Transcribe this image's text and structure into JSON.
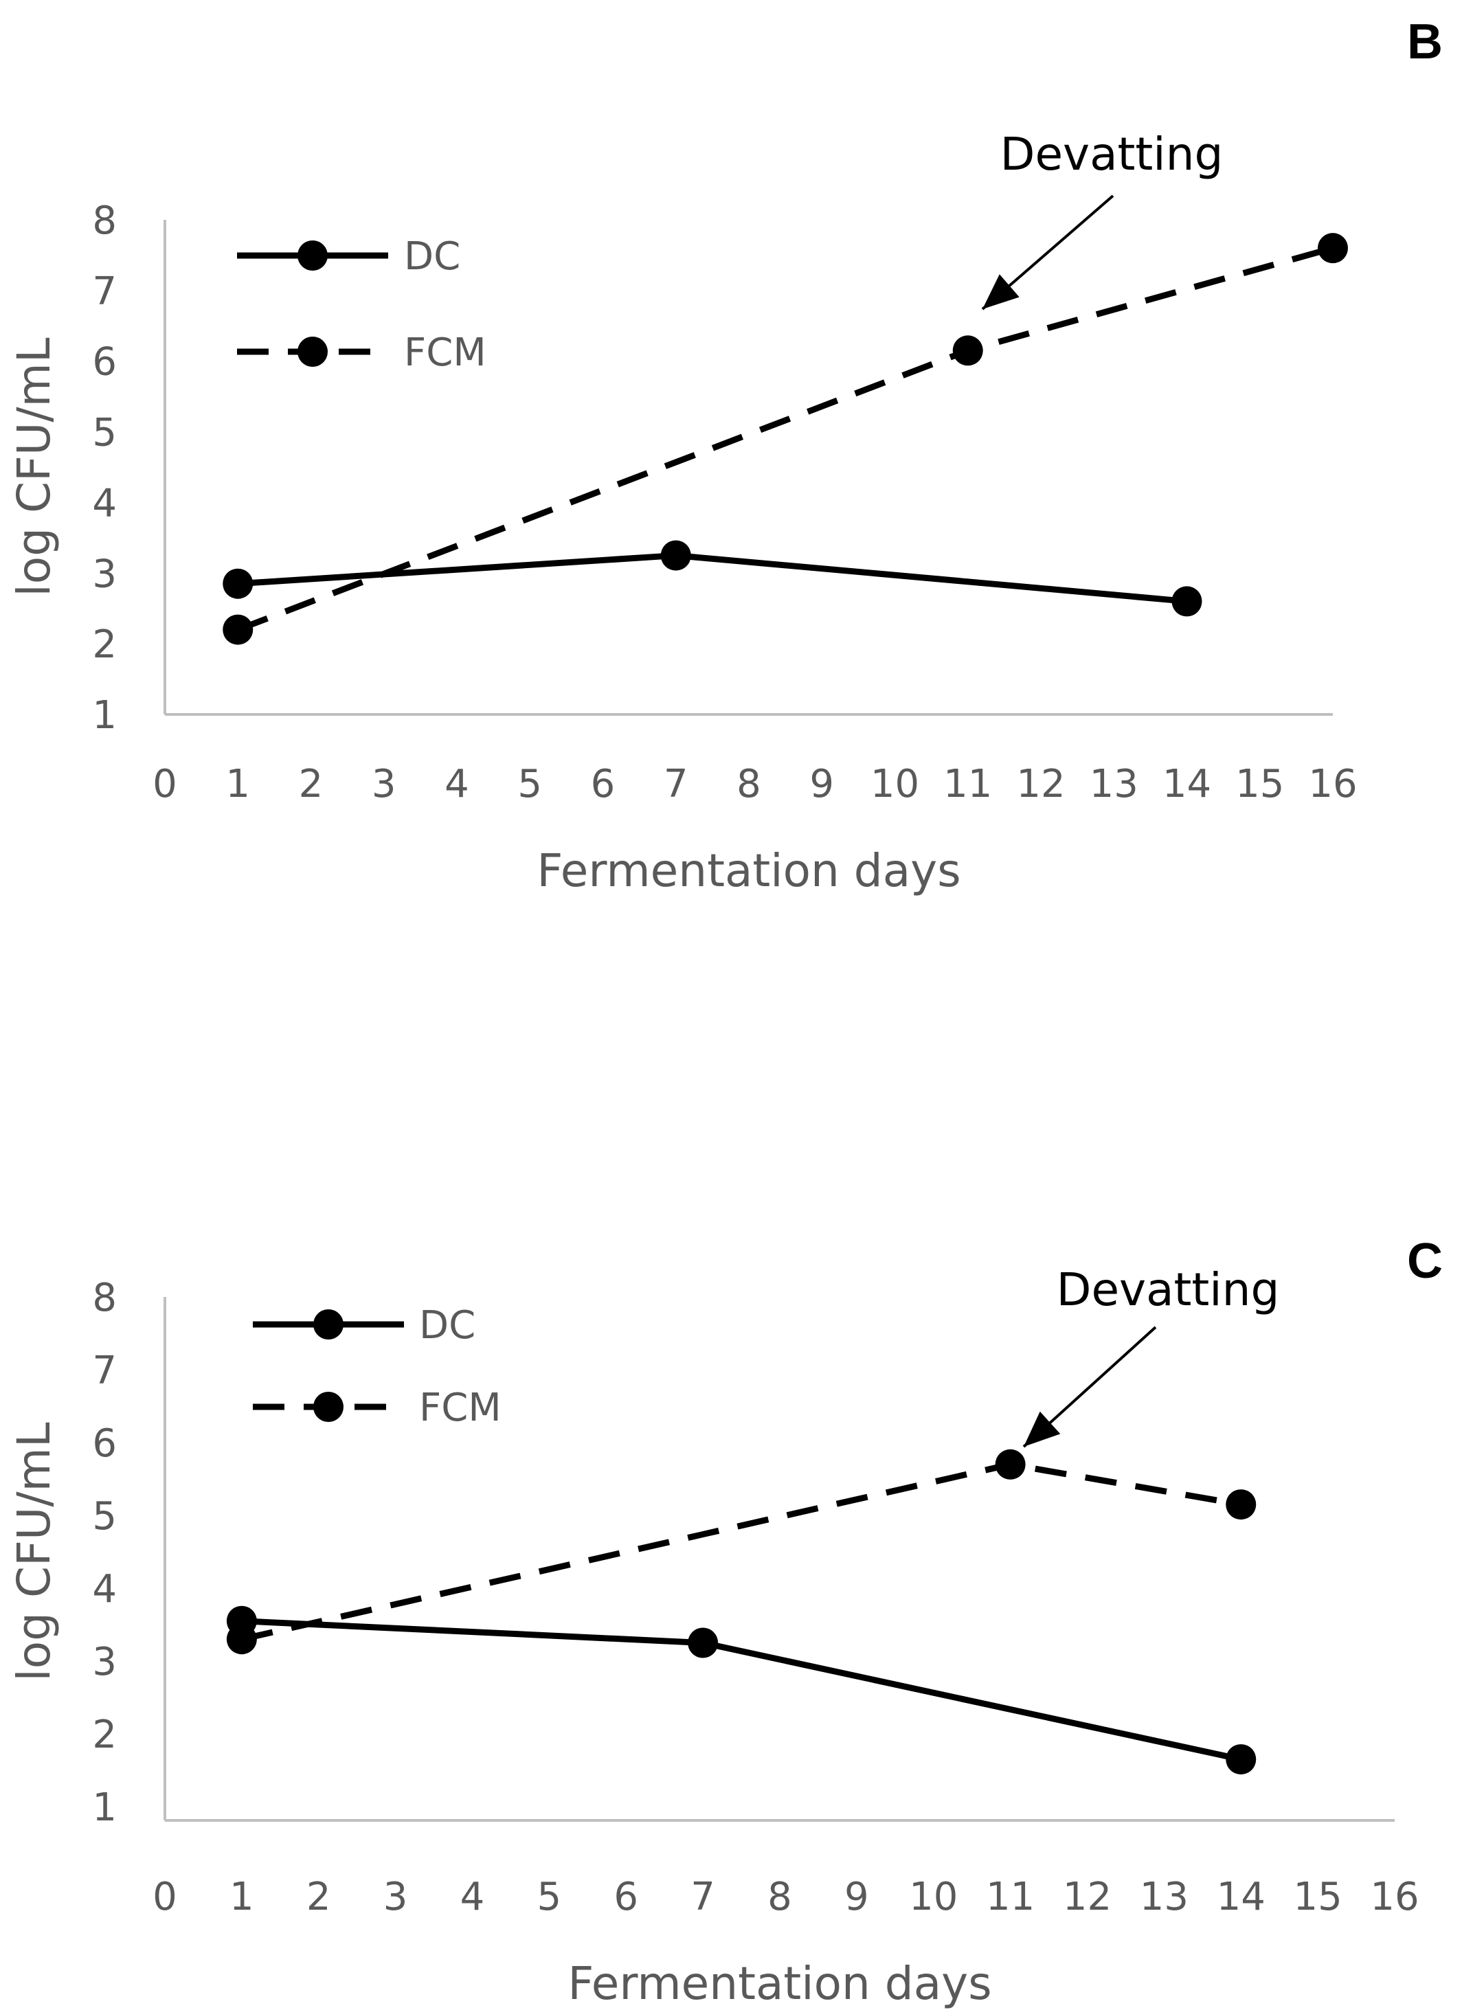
{
  "chart_data": [
    {
      "panel": "B",
      "type": "line",
      "xlabel": "Fermentation days",
      "ylabel": "log CFU/mL",
      "xlim": [
        0,
        16
      ],
      "ylim": [
        1,
        8
      ],
      "x_ticks": [
        0,
        1,
        2,
        3,
        4,
        5,
        6,
        7,
        8,
        9,
        10,
        11,
        12,
        13,
        14,
        15,
        16
      ],
      "y_ticks": [
        1,
        2,
        3,
        4,
        5,
        6,
        7,
        8
      ],
      "grid": false,
      "legend_position": "top-left",
      "annotation": {
        "text": "Devatting",
        "x": 11,
        "series": "FCM"
      },
      "series": [
        {
          "name": "DC",
          "style": "solid",
          "x": [
            1,
            7,
            14
          ],
          "values": [
            2.85,
            3.25,
            2.6
          ]
        },
        {
          "name": "FCM",
          "style": "dashed",
          "x": [
            1,
            11,
            16
          ],
          "values": [
            2.2,
            6.15,
            7.6
          ]
        }
      ]
    },
    {
      "panel": "C",
      "type": "line",
      "xlabel": "Fermentation days",
      "ylabel": "log CFU/mL",
      "xlim": [
        0,
        16
      ],
      "ylim": [
        1,
        8
      ],
      "x_ticks": [
        0,
        1,
        2,
        3,
        4,
        5,
        6,
        7,
        8,
        9,
        10,
        11,
        12,
        13,
        14,
        15,
        16
      ],
      "y_ticks": [
        1,
        2,
        3,
        4,
        5,
        6,
        7,
        8
      ],
      "grid": false,
      "legend_position": "top-left",
      "annotation": {
        "text": "Devatting",
        "x": 11,
        "series": "FCM"
      },
      "series": [
        {
          "name": "DC",
          "style": "solid",
          "x": [
            1,
            7,
            14
          ],
          "values": [
            3.55,
            3.25,
            1.65
          ]
        },
        {
          "name": "FCM",
          "style": "dashed",
          "x": [
            1,
            11,
            14
          ],
          "values": [
            3.3,
            5.7,
            5.15
          ]
        }
      ]
    }
  ]
}
